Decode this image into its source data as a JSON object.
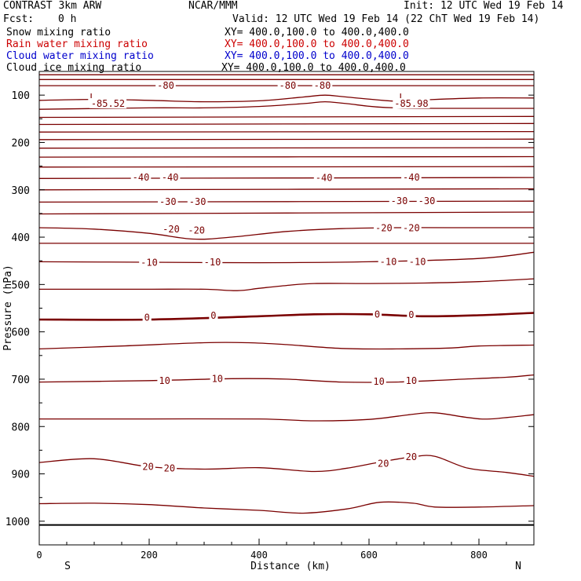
{
  "header": {
    "title": "CONTRAST  3km ARW",
    "org": "NCAR/MMM",
    "init": "Init: 12 UTC Wed 19 Feb 14",
    "fcst_label": "Fcst:",
    "fcst_value": "0 h",
    "valid": "Valid: 12 UTC Wed 19 Feb 14 (22 ChT Wed 19 Feb 14)"
  },
  "fields": [
    {
      "name": "Snow mixing ratio",
      "xy": "XY= 400.0,100.0 to 400.0,400.0",
      "color": "#000000"
    },
    {
      "name": "Rain water mixing ratio",
      "xy": "XY= 400.0,100.0 to 400.0,400.0",
      "color": "#cc0000"
    },
    {
      "name": "Cloud water mixing ratio",
      "xy": "XY= 400.0,100.0 to 400.0,400.0",
      "color": "#0000cc"
    },
    {
      "name": "Cloud ice mixing ratio",
      "xy": "XY= 400.0,100.0 to 400.0,400.0",
      "color": "#000000"
    }
  ],
  "chart_data": {
    "type": "line",
    "xlabel": "Distance (km)",
    "ylabel": "Pressure (hPa)",
    "xlim": [
      0,
      900
    ],
    "ylim": [
      1050,
      50
    ],
    "x_ticks": [
      0,
      200,
      400,
      600,
      800
    ],
    "y_ticks": [
      100,
      200,
      300,
      400,
      500,
      600,
      700,
      800,
      900,
      1000
    ],
    "left_end_label": "S",
    "right_end_label": "N",
    "contour_color": "#7a0000",
    "surface_pressure": 1008,
    "contours": [
      {
        "level": -85,
        "x": [
          0,
          900
        ],
        "p": [
          57,
          57
        ]
      },
      {
        "level": -80,
        "x": [
          0,
          900
        ],
        "p": [
          67,
          67
        ]
      },
      {
        "level": -80,
        "x": [
          0,
          900
        ],
        "p": [
          80,
          80
        ]
      },
      {
        "level": -85,
        "x": [
          0,
          100,
          200,
          300,
          400,
          480,
          520,
          560,
          650,
          700,
          800,
          900
        ],
        "p": [
          111,
          109,
          111,
          114,
          112,
          104,
          100,
          104,
          113,
          110,
          106,
          106
        ]
      },
      {
        "level": -80,
        "x": [
          0,
          200,
          300,
          400,
          480,
          520,
          560,
          650,
          900
        ],
        "p": [
          130,
          127,
          127,
          124,
          118,
          114,
          118,
          127,
          128
        ]
      },
      {
        "level": -75,
        "x": [
          0,
          900
        ],
        "p": [
          147,
          145
        ]
      },
      {
        "level": -70,
        "x": [
          0,
          900
        ],
        "p": [
          162,
          160
        ]
      },
      {
        "level": -65,
        "x": [
          0,
          900
        ],
        "p": [
          178,
          177
        ]
      },
      {
        "level": -60,
        "x": [
          0,
          900
        ],
        "p": [
          194,
          193
        ]
      },
      {
        "level": -55,
        "x": [
          0,
          900
        ],
        "p": [
          212,
          211
        ]
      },
      {
        "level": -50,
        "x": [
          0,
          900
        ],
        "p": [
          231,
          230
        ]
      },
      {
        "level": -45,
        "x": [
          0,
          900
        ],
        "p": [
          252,
          251
        ]
      },
      {
        "level": -40,
        "x": [
          0,
          900
        ],
        "p": [
          276,
          274
        ]
      },
      {
        "level": -35,
        "x": [
          0,
          900
        ],
        "p": [
          300,
          298
        ]
      },
      {
        "level": -30,
        "x": [
          0,
          900
        ],
        "p": [
          326,
          324
        ]
      },
      {
        "level": -25,
        "x": [
          0,
          900
        ],
        "p": [
          351,
          347
        ]
      },
      {
        "level": -20,
        "x": [
          0,
          100,
          200,
          280,
          350,
          450,
          550,
          650,
          750,
          900
        ],
        "p": [
          380,
          383,
          392,
          404,
          400,
          388,
          382,
          380,
          380,
          380
        ]
      },
      {
        "level": -15,
        "x": [
          0,
          900
        ],
        "p": [
          413,
          413
        ]
      },
      {
        "level": -10,
        "x": [
          0,
          200,
          400,
          600,
          800,
          900
        ],
        "p": [
          452,
          453,
          454,
          452,
          445,
          432
        ]
      },
      {
        "level": -5,
        "x": [
          0,
          100,
          200,
          300,
          360,
          400,
          450,
          500,
          600,
          700,
          800,
          900
        ],
        "p": [
          510,
          510,
          510,
          510,
          513,
          508,
          502,
          498,
          498,
          497,
          494,
          488
        ]
      },
      {
        "level": 0,
        "x": [
          0,
          200,
          400,
          500,
          600,
          700,
          800,
          900
        ],
        "p": [
          574,
          574,
          567,
          563,
          563,
          567,
          565,
          560
        ]
      },
      {
        "level": 5,
        "x": [
          0,
          150,
          300,
          380,
          450,
          550,
          650,
          750,
          800,
          900
        ],
        "p": [
          636,
          630,
          623,
          623,
          627,
          635,
          636,
          634,
          630,
          628
        ]
      },
      {
        "level": 10,
        "x": [
          0,
          200,
          350,
          450,
          550,
          650,
          750,
          850,
          900
        ],
        "p": [
          706,
          703,
          699,
          700,
          706,
          706,
          701,
          696,
          691
        ]
      },
      {
        "level": 15,
        "x": [
          0,
          200,
          400,
          500,
          600,
          680,
          720,
          780,
          820,
          900
        ],
        "p": [
          784,
          784,
          784,
          788,
          785,
          774,
          771,
          781,
          784,
          775
        ]
      },
      {
        "level": 20,
        "x": [
          0,
          100,
          200,
          300,
          400,
          500,
          560,
          620,
          680,
          720,
          780,
          850,
          900
        ],
        "p": [
          876,
          868,
          885,
          890,
          887,
          895,
          888,
          875,
          864,
          863,
          888,
          897,
          905
        ]
      },
      {
        "level": 25,
        "x": [
          0,
          100,
          200,
          300,
          400,
          480,
          560,
          620,
          680,
          720,
          800,
          900
        ],
        "p": [
          963,
          962,
          965,
          972,
          977,
          983,
          974,
          960,
          962,
          970,
          970,
          967
        ]
      }
    ],
    "contour_labels": [
      {
        "text": "-80",
        "x": 230,
        "p": 80
      },
      {
        "text": "-80",
        "x": 452,
        "p": 80
      },
      {
        "text": "-80",
        "x": 515,
        "p": 80
      },
      {
        "text": "L",
        "x": 97,
        "p": 105
      },
      {
        "text": "-85.52",
        "x": 125,
        "p": 118
      },
      {
        "text": "L",
        "x": 660,
        "p": 105
      },
      {
        "text": "-85.98",
        "x": 677,
        "p": 118
      },
      {
        "text": "-40",
        "x": 185,
        "p": 274
      },
      {
        "text": "-40",
        "x": 238,
        "p": 274
      },
      {
        "text": "-40",
        "x": 518,
        "p": 275
      },
      {
        "text": "-40",
        "x": 677,
        "p": 274
      },
      {
        "text": "-30",
        "x": 234,
        "p": 325
      },
      {
        "text": "-30",
        "x": 288,
        "p": 325
      },
      {
        "text": "-30",
        "x": 655,
        "p": 324
      },
      {
        "text": "-30",
        "x": 705,
        "p": 324
      },
      {
        "text": "-20",
        "x": 240,
        "p": 383
      },
      {
        "text": "-20",
        "x": 286,
        "p": 386
      },
      {
        "text": "-20",
        "x": 627,
        "p": 381
      },
      {
        "text": "-20",
        "x": 677,
        "p": 381
      },
      {
        "text": "-10",
        "x": 200,
        "p": 454
      },
      {
        "text": "-10",
        "x": 315,
        "p": 453
      },
      {
        "text": "-10",
        "x": 635,
        "p": 452
      },
      {
        "text": "-10",
        "x": 688,
        "p": 452
      },
      {
        "text": "0",
        "x": 196,
        "p": 570
      },
      {
        "text": "0",
        "x": 317,
        "p": 566
      },
      {
        "text": "0",
        "x": 615,
        "p": 563
      },
      {
        "text": "0",
        "x": 677,
        "p": 564
      },
      {
        "text": "10",
        "x": 228,
        "p": 703
      },
      {
        "text": "10",
        "x": 324,
        "p": 699
      },
      {
        "text": "10",
        "x": 618,
        "p": 705
      },
      {
        "text": "10",
        "x": 677,
        "p": 703
      },
      {
        "text": "20",
        "x": 198,
        "p": 885
      },
      {
        "text": "20",
        "x": 237,
        "p": 888
      },
      {
        "text": "20",
        "x": 626,
        "p": 878
      },
      {
        "text": "20",
        "x": 677,
        "p": 864
      }
    ]
  }
}
